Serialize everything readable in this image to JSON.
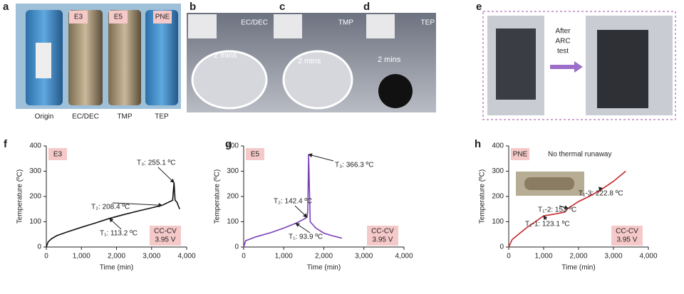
{
  "panels": {
    "a": {
      "letter": "a",
      "tags": [
        "E3",
        "E5",
        "PNE"
      ],
      "labels": [
        "Origin",
        "EC/DEC",
        "TMP",
        "TEP"
      ]
    },
    "b": {
      "letter": "b",
      "solvent": "EC/DEC",
      "time": "2 mins"
    },
    "c": {
      "letter": "c",
      "solvent": "TMP",
      "time": "2 mins"
    },
    "d": {
      "letter": "d",
      "solvent": "TEP",
      "time": "2 mins"
    },
    "e": {
      "letter": "e",
      "caption": [
        "After",
        "ARC",
        "test"
      ]
    }
  },
  "chart_data": [
    {
      "type": "line",
      "letter": "f",
      "xlabel": "Time (min)",
      "ylabel": "Temperature (ºC)",
      "condition": [
        "CC-CV",
        "3.95 V"
      ],
      "x": [
        0,
        50,
        150,
        300,
        600,
        1000,
        1400,
        1800,
        2200,
        2600,
        3000,
        3300,
        3600,
        3640,
        3670,
        3720,
        3800
      ],
      "series": [
        {
          "name": "E3",
          "color": "#111111",
          "values": [
            0,
            20,
            33,
            45,
            60,
            78,
            95,
            113.2,
            128,
            142,
            155,
            165,
            185,
            255.1,
            185,
            178,
            150
          ]
        }
      ],
      "annotations": [
        "T₃: 255.1 ºC",
        "T₂: 208.4 ºC",
        "T₁: 113.2 ºC"
      ],
      "xlim": [
        0,
        4000
      ],
      "xticks": [
        0,
        {
          "value": 1000,
          "label": "1,000"
        },
        {
          "value": 2000,
          "label": "2,000"
        },
        {
          "value": 3000,
          "label": "3,000"
        },
        {
          "value": 4000,
          "label": "4,000"
        }
      ],
      "ylim": [
        0,
        400
      ],
      "yticks": [
        0,
        100,
        200,
        300,
        400
      ]
    },
    {
      "type": "line",
      "letter": "g",
      "xlabel": "Time (min)",
      "ylabel": "Temperature (ºC)",
      "condition": [
        "CC-CV",
        "3.95 V"
      ],
      "x": [
        0,
        50,
        300,
        700,
        1000,
        1300,
        1500,
        1580,
        1600,
        1620,
        1660,
        1800,
        2000,
        2200,
        2450
      ],
      "series": [
        {
          "name": "E5",
          "color": "#7b3fb8",
          "values": [
            0,
            25,
            40,
            58,
            75,
            93.9,
            110,
            118,
            142.4,
            366.3,
            100,
            75,
            55,
            45,
            35
          ]
        }
      ],
      "annotations": [
        "T₃: 366.3 ºC",
        "T₂: 142.4 ºC",
        "T₁: 93.9 ºC"
      ],
      "xlim": [
        0,
        4000
      ],
      "xticks": [
        0,
        {
          "value": 1000,
          "label": "1,000"
        },
        {
          "value": 2000,
          "label": "2,000"
        },
        {
          "value": 3000,
          "label": "3,000"
        },
        {
          "value": 4000,
          "label": "4,000"
        }
      ],
      "ylim": [
        0,
        400
      ],
      "yticks": [
        0,
        100,
        200,
        300,
        400
      ]
    },
    {
      "type": "line",
      "letter": "h",
      "xlabel": "Time (min)",
      "ylabel": "Temperature (ºC)",
      "condition": [
        "CC-CV",
        "3.95 V"
      ],
      "subtitle": "No thermal runaway",
      "x": [
        0,
        100,
        500,
        1000,
        1300,
        1600,
        1700,
        2000,
        2300,
        2600,
        3000,
        3350
      ],
      "series": [
        {
          "name": "PNE",
          "color": "#c8262b",
          "values": [
            0,
            30,
            75,
            123.1,
            130,
            138,
            153,
            180,
            200,
            222.8,
            260,
            300
          ]
        }
      ],
      "annotations": [
        "T₁-3: 222.8 ºC",
        "T₁-2: 153 ºC",
        "T₁-1: 123.1 ºC"
      ],
      "xlim": [
        0,
        4000
      ],
      "xticks": [
        0,
        {
          "value": 1000,
          "label": "1,000"
        },
        {
          "value": 2000,
          "label": "2,000"
        },
        {
          "value": 3000,
          "label": "3,000"
        },
        {
          "value": 4000,
          "label": "4,000"
        }
      ],
      "ylim": [
        0,
        400
      ],
      "yticks": [
        0,
        100,
        200,
        300,
        400
      ]
    }
  ]
}
